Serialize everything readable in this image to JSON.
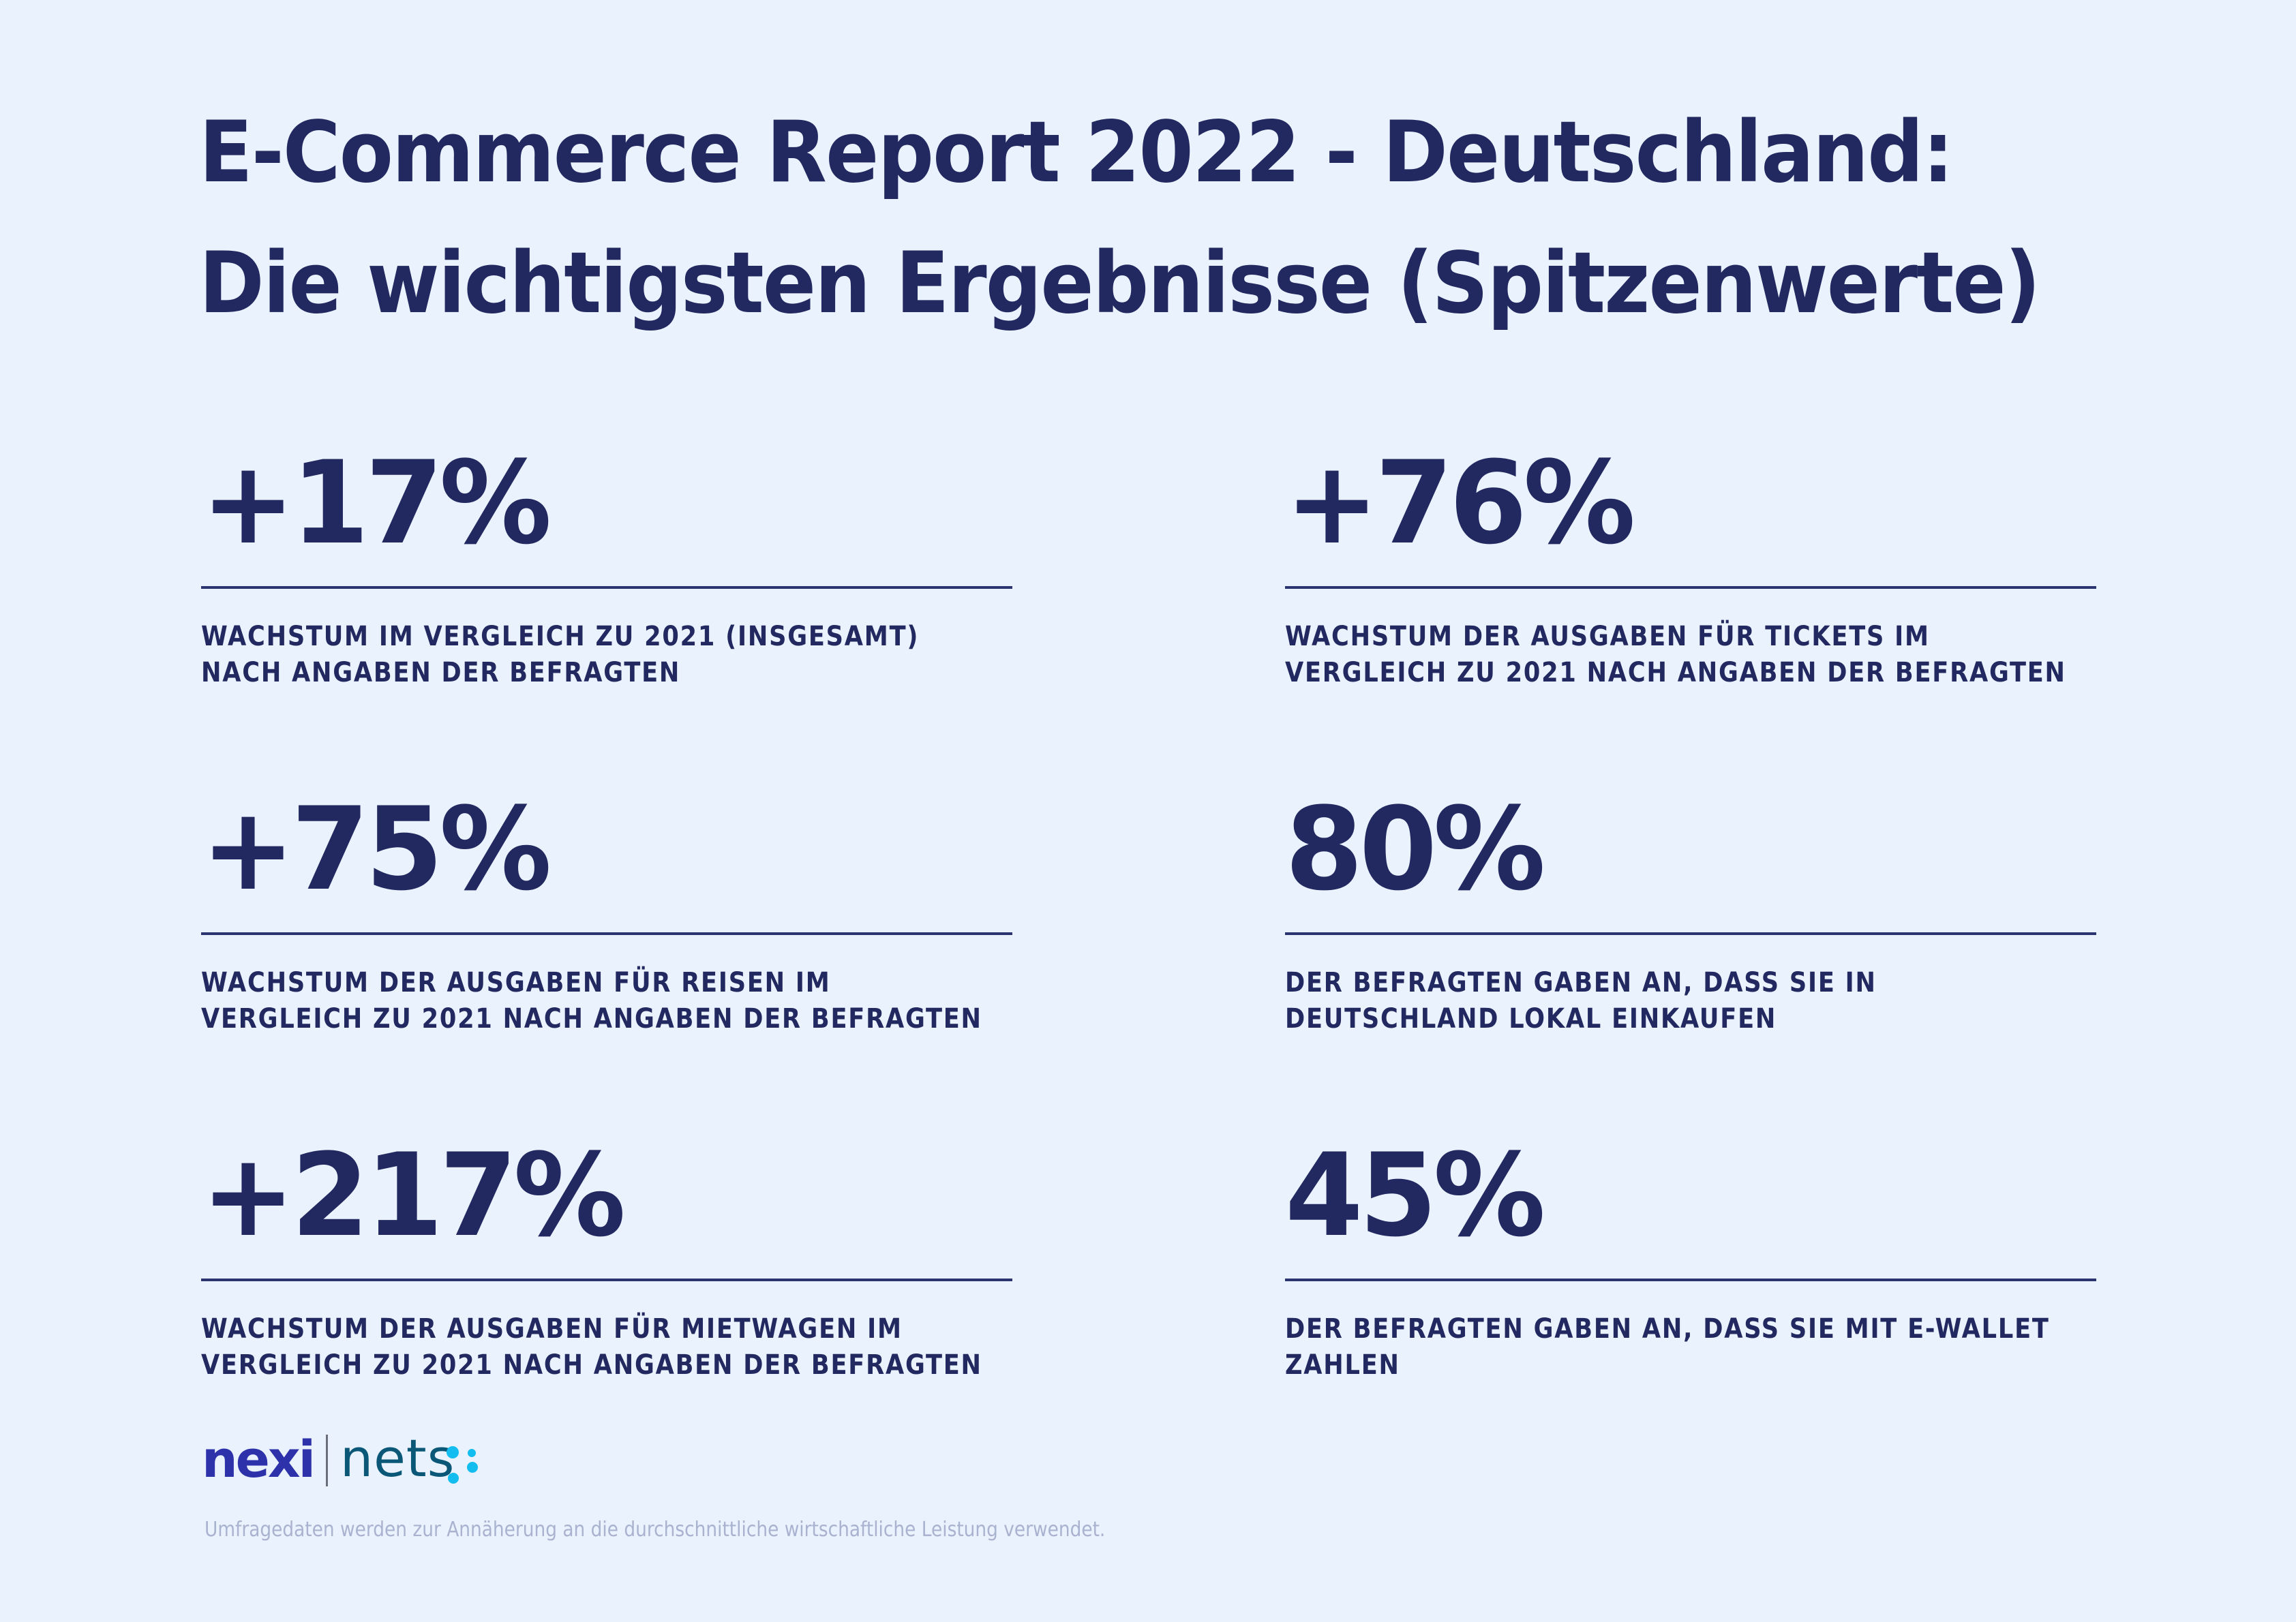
{
  "title": {
    "line1": "E-Commerce Report 2022 - Deutschland:",
    "line2": "Die wichtigsten Ergebnisse (Spitzenwerte)"
  },
  "stats": [
    {
      "value": "+17%",
      "description_line1": "WACHSTUM IM VERGLEICH ZU 2021 (INSGESAMT)",
      "description_line2": "NACH ANGABEN DER BEFRAGTEN"
    },
    {
      "value": "+76%",
      "description_line1": "WACHSTUM DER AUSGABEN FÜR TICKETS IM",
      "description_line2": "VERGLEICH ZU 2021 NACH ANGABEN DER BEFRAGTEN"
    },
    {
      "value": "+75%",
      "description_line1": "WACHSTUM DER AUSGABEN FÜR REISEN IM",
      "description_line2": "VERGLEICH ZU 2021 NACH ANGABEN DER BEFRAGTEN"
    },
    {
      "value": "80%",
      "description_line1": "DER BEFRAGTEN GABEN AN, DASS SIE IN",
      "description_line2": "DEUTSCHLAND LOKAL EINKAUFEN"
    },
    {
      "value": "+217%",
      "description_line1": "WACHSTUM DER AUSGABEN FÜR MIETWAGEN IM",
      "description_line2": "VERGLEICH ZU 2021 NACH ANGABEN DER BEFRAGTEN"
    },
    {
      "value": "45%",
      "description_line1": "DER BEFRAGTEN GABEN AN, DASS SIE MIT E-WALLET",
      "description_line2": "ZAHLEN"
    }
  ],
  "logo": {
    "brand1": "nexi",
    "brand2": "nets",
    "brand1_color": "#2d32aa",
    "brand2_color": "#0a5778",
    "dots_color": "#14bdf0"
  },
  "footnote": "Umfragedaten werden zur Annäherung an die durchschnittliche wirtschaftliche Leistung verwendet.",
  "colors": {
    "background": "#eaf2fd",
    "text": "#222960",
    "footnote": "#a9b3d0"
  }
}
